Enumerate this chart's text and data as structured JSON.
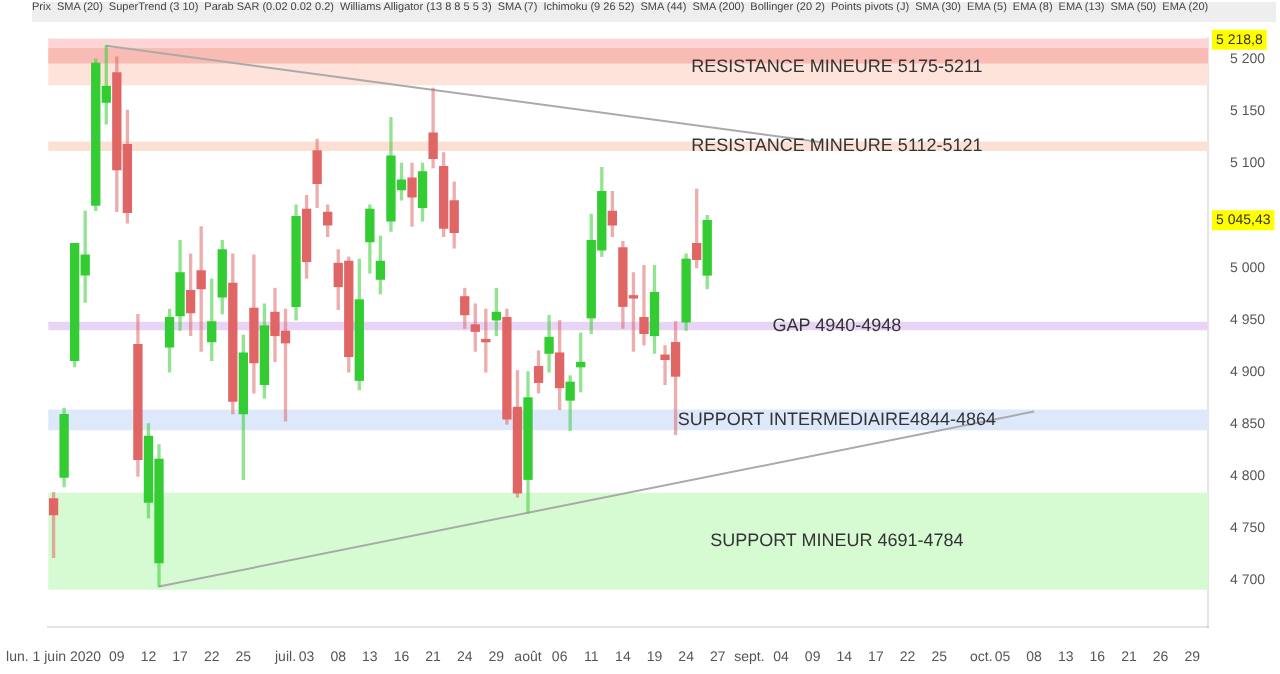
{
  "chart_data": {
    "type": "candlestick",
    "categories": [
      "lun. 1 juin 2020",
      null,
      null,
      null,
      null,
      null,
      "09",
      null,
      null,
      "12",
      null,
      null,
      "17",
      null,
      null,
      "22",
      null,
      null,
      "25",
      null,
      null,
      null,
      "juil.",
      null,
      "03",
      null,
      null,
      "08",
      null,
      null,
      "13",
      null,
      null,
      "16",
      null,
      null,
      "21",
      null,
      null,
      "24",
      null,
      null,
      "29",
      null,
      null,
      "août",
      null,
      null,
      "06",
      null,
      null,
      "11",
      null,
      null,
      "14",
      null,
      null,
      "19",
      null,
      null,
      "24",
      null,
      null,
      "27",
      null,
      null,
      "sept.",
      null,
      null,
      "04",
      null,
      null,
      "09",
      null,
      null,
      "14",
      null,
      null,
      "17",
      null,
      null,
      "22",
      null,
      null,
      "25",
      null,
      null,
      null,
      "oct.",
      null,
      "05",
      null,
      null,
      "08",
      null,
      null,
      "13",
      null,
      null,
      "16",
      null,
      null,
      "21",
      null,
      null,
      "26",
      null,
      null,
      "29",
      null
    ],
    "ohlc": [
      [
        4778,
        4784,
        4722,
        4763
      ],
      [
        4799,
        4865,
        4790,
        4859
      ],
      [
        4911,
        5023,
        4905,
        5023
      ],
      [
        4993,
        5054,
        4967,
        5012
      ],
      [
        5060,
        5200,
        5055,
        5196
      ],
      [
        5159,
        5213,
        5138,
        5174
      ],
      [
        5187,
        5202,
        5054,
        5094
      ],
      [
        5118,
        5151,
        5043,
        5053
      ],
      [
        4926,
        4955,
        4800,
        4816
      ],
      [
        4775,
        4850,
        4760,
        4838
      ],
      [
        4717,
        4830,
        4694,
        4816
      ],
      [
        4924,
        4960,
        4900,
        4952
      ],
      [
        4954,
        5026,
        4940,
        4995
      ],
      [
        4978,
        5013,
        4935,
        4957
      ],
      [
        4997,
        5039,
        4920,
        4980
      ],
      [
        4929,
        4989,
        4911,
        4948
      ],
      [
        4972,
        5026,
        4956,
        5017
      ],
      [
        4985,
        5013,
        4860,
        4872
      ],
      [
        4860,
        4935,
        4797,
        4918
      ],
      [
        4961,
        5012,
        4880,
        4909
      ],
      [
        4888,
        4965,
        4875,
        4944
      ],
      [
        4957,
        4980,
        4910,
        4935
      ],
      [
        4939,
        4960,
        4853,
        4928
      ],
      [
        4963,
        5060,
        4950,
        5049
      ],
      [
        5056,
        5069,
        4990,
        5006
      ],
      [
        5112,
        5123,
        5058,
        5081
      ],
      [
        5053,
        5060,
        5030,
        5041
      ],
      [
        5004,
        5017,
        4960,
        4982
      ],
      [
        5006,
        5010,
        4900,
        4915
      ],
      [
        4892,
        5008,
        4883,
        4969
      ],
      [
        5025,
        5060,
        4995,
        5056
      ],
      [
        4989,
        5030,
        4975,
        5006
      ],
      [
        5045,
        5144,
        5035,
        5107
      ],
      [
        5075,
        5100,
        5065,
        5084
      ],
      [
        5086,
        5100,
        5040,
        5068
      ],
      [
        5058,
        5100,
        5045,
        5092
      ],
      [
        5129,
        5172,
        5096,
        5105
      ],
      [
        5097,
        5110,
        5030,
        5038
      ],
      [
        5064,
        5082,
        5019,
        5034
      ],
      [
        4972,
        4980,
        4942,
        4955
      ],
      [
        4945,
        4965,
        4920,
        4939
      ],
      [
        4931,
        4960,
        4900,
        4929
      ],
      [
        4950,
        4980,
        4935,
        4957
      ],
      [
        4952,
        4960,
        4850,
        4855
      ],
      [
        4866,
        4901,
        4780,
        4784
      ],
      [
        4797,
        4900,
        4765,
        4875
      ],
      [
        4905,
        4920,
        4880,
        4890
      ],
      [
        4918,
        4954,
        4900,
        4933
      ],
      [
        4918,
        4949,
        4864,
        4885
      ],
      [
        4873,
        4896,
        4844,
        4890
      ],
      [
        4905,
        4937,
        4881,
        4909
      ],
      [
        4952,
        5051,
        4937,
        5026
      ],
      [
        5017,
        5096,
        5011,
        5073
      ],
      [
        5054,
        5073,
        5030,
        5041
      ],
      [
        5019,
        5025,
        4942,
        4963
      ],
      [
        4973,
        4995,
        4920,
        4971
      ],
      [
        4952,
        5002,
        4926,
        4937
      ],
      [
        4935,
        5002,
        4918,
        4976
      ],
      [
        4916,
        4925,
        4888,
        4912
      ],
      [
        4928,
        4948,
        4840,
        4896
      ],
      [
        4948,
        5013,
        4940,
        5008
      ],
      [
        5023,
        5075,
        5000,
        5008
      ],
      [
        4993,
        5050,
        4980,
        5045
      ],
      null,
      null,
      null,
      null,
      null,
      null,
      null,
      null,
      null,
      null,
      null,
      null,
      null,
      null,
      null,
      null,
      null,
      null,
      null,
      null,
      null,
      null,
      null,
      null,
      null,
      null,
      null,
      null,
      null,
      null,
      null,
      null,
      null,
      null,
      null,
      null,
      null,
      null,
      null,
      null,
      null,
      null,
      null,
      null,
      null,
      null,
      null
    ],
    "colors": [
      "#e06666",
      "#33cc33",
      "#33cc33",
      "#33cc33",
      "#33cc33",
      "#33cc33",
      "#e06666",
      "#e06666",
      "#e06666",
      "#33cc33",
      "#33cc33",
      "#33cc33",
      "#33cc33",
      "#e06666",
      "#e06666",
      "#33cc33",
      "#33cc33",
      "#e06666",
      "#33cc33",
      "#e06666",
      "#33cc33",
      "#e06666",
      "#e06666",
      "#33cc33",
      "#e06666",
      "#e06666",
      "#e06666",
      "#e06666",
      "#e06666",
      "#33cc33",
      "#33cc33",
      "#33cc33",
      "#33cc33",
      "#33cc33",
      "#e06666",
      "#33cc33",
      "#e06666",
      "#e06666",
      "#e06666",
      "#e06666",
      "#e06666",
      "#e06666",
      "#33cc33",
      "#e06666",
      "#e06666",
      "#33cc33",
      "#e06666",
      "#33cc33",
      "#e06666",
      "#33cc33",
      "#33cc33",
      "#33cc33",
      "#33cc33",
      "#e06666",
      "#e06666",
      "#e06666",
      "#e06666",
      "#33cc33",
      "#e06666",
      "#e06666",
      "#33cc33",
      "#e06666",
      "#33cc33",
      null,
      null,
      null,
      null,
      null,
      null,
      null,
      null,
      null,
      null,
      null,
      null,
      null,
      null,
      null,
      null,
      null,
      null,
      null,
      null,
      null,
      null,
      null,
      null,
      null,
      null,
      null,
      null,
      null,
      null,
      null,
      null,
      null,
      null,
      null,
      null,
      null,
      null,
      null,
      null,
      null,
      null,
      null,
      null,
      null,
      null,
      null
    ],
    "series": [
      {
        "type": "line",
        "color": "#aaaaaa",
        "values": [
          null,
          null,
          null,
          null,
          null,
          5213,
          null,
          null,
          null,
          null,
          null,
          null,
          null,
          null,
          null,
          null,
          null,
          null,
          null,
          null,
          null,
          null,
          null,
          null,
          null,
          null,
          null,
          null,
          null,
          null,
          null,
          null,
          null,
          null,
          null,
          null,
          null,
          null,
          null,
          null,
          null,
          null,
          null,
          null,
          null,
          null,
          null,
          null,
          null,
          null,
          null,
          null,
          null,
          null,
          null,
          null,
          null,
          null,
          null,
          null,
          null,
          null,
          null,
          null,
          null,
          null,
          null,
          null,
          null,
          null,
          null,
          null,
          null,
          5120,
          null,
          null,
          null,
          null,
          null,
          null,
          null,
          null,
          null,
          null,
          null,
          null,
          null,
          null,
          null,
          null,
          null,
          null,
          null,
          null,
          null,
          null,
          null,
          null,
          null,
          null,
          null,
          null,
          null,
          null,
          null,
          null,
          null,
          null,
          null,
          null
        ]
      },
      {
        "type": "line",
        "color": "#aaaaaa",
        "values": [
          null,
          null,
          null,
          null,
          null,
          null,
          null,
          null,
          null,
          null,
          4694,
          null,
          null,
          null,
          null,
          null,
          null,
          null,
          null,
          null,
          null,
          null,
          null,
          null,
          null,
          null,
          null,
          null,
          null,
          null,
          null,
          null,
          null,
          null,
          null,
          null,
          null,
          null,
          null,
          null,
          null,
          null,
          null,
          null,
          null,
          null,
          null,
          null,
          null,
          null,
          null,
          null,
          null,
          null,
          null,
          null,
          null,
          null,
          null,
          null,
          null,
          null,
          null,
          null,
          null,
          null,
          null,
          null,
          null,
          null,
          null,
          null,
          null,
          null,
          null,
          null,
          null,
          null,
          null,
          null,
          null,
          null,
          null,
          null,
          null,
          null,
          null,
          null,
          null,
          null,
          null,
          null,
          null,
          4862,
          null,
          null,
          null,
          null,
          null,
          null,
          null,
          null,
          null,
          null,
          null,
          null,
          null,
          null,
          null,
          null
        ]
      }
    ],
    "ylim": [
      4655,
      5220
    ],
    "yticks": [
      {
        "value": 4700,
        "label": "4 700"
      },
      {
        "value": 4750,
        "label": "4 750"
      },
      {
        "value": 4800,
        "label": "4 800"
      },
      {
        "value": 4850,
        "label": "4 850"
      },
      {
        "value": 4900,
        "label": "4 900"
      },
      {
        "value": 4950,
        "label": "4 950"
      },
      {
        "value": 5000,
        "label": "5 000"
      },
      {
        "value": 5100,
        "label": "5 100"
      },
      {
        "value": 5150,
        "label": "5 150"
      },
      {
        "value": 5200,
        "label": "5 200"
      }
    ],
    "bands": [
      {
        "axis": "y",
        "from": 5175,
        "to": 5211,
        "label": "RESISTANCE MINEURE 5175-5211",
        "color": "#fde3d9"
      },
      {
        "axis": "y",
        "from": 5211,
        "to": 5220,
        "color": "#fdd5d5"
      },
      {
        "axis": "y",
        "from": 5196,
        "to": 5211,
        "color": "#f9bcb4"
      },
      {
        "axis": "y",
        "from": 5112,
        "to": 5121,
        "label": "RESISTANCE MINEURE 5112-5121",
        "color": "#fde0d4"
      },
      {
        "axis": "y",
        "from": 4940,
        "to": 4948,
        "label": "GAP 4940-4948",
        "color": "#e8d4f5"
      },
      {
        "axis": "y",
        "from": 4844,
        "to": 4864,
        "label": "SUPPORT INTERMEDIAIRE4844-4864",
        "color": "#dde8fb"
      },
      {
        "axis": "y",
        "from": 4691,
        "to": 4784,
        "label": "SUPPORT MINEUR 4691-4784",
        "color": "#d6fad2"
      }
    ],
    "annotations": [
      "Prix",
      "SMA (20)",
      "SuperTrend (3 10)",
      "Parab SAR (0.02 0.02 0.2)",
      "Williams Alligator (13 8 8 5 5 3)",
      "SMA (7)",
      "Ichimoku (9 26 52)",
      "SMA (44)",
      "SMA (200)",
      "Bollinger (20 2)",
      "Points pivots (J)",
      "SMA (30)",
      "EMA (5)",
      "EMA (8)",
      "EMA (13)",
      "SMA (50)",
      "EMA (20)",
      {
        "text": "5 218,8",
        "y": 5218.8
      },
      {
        "text": "5 045,43",
        "y": 5045.43
      }
    ]
  }
}
